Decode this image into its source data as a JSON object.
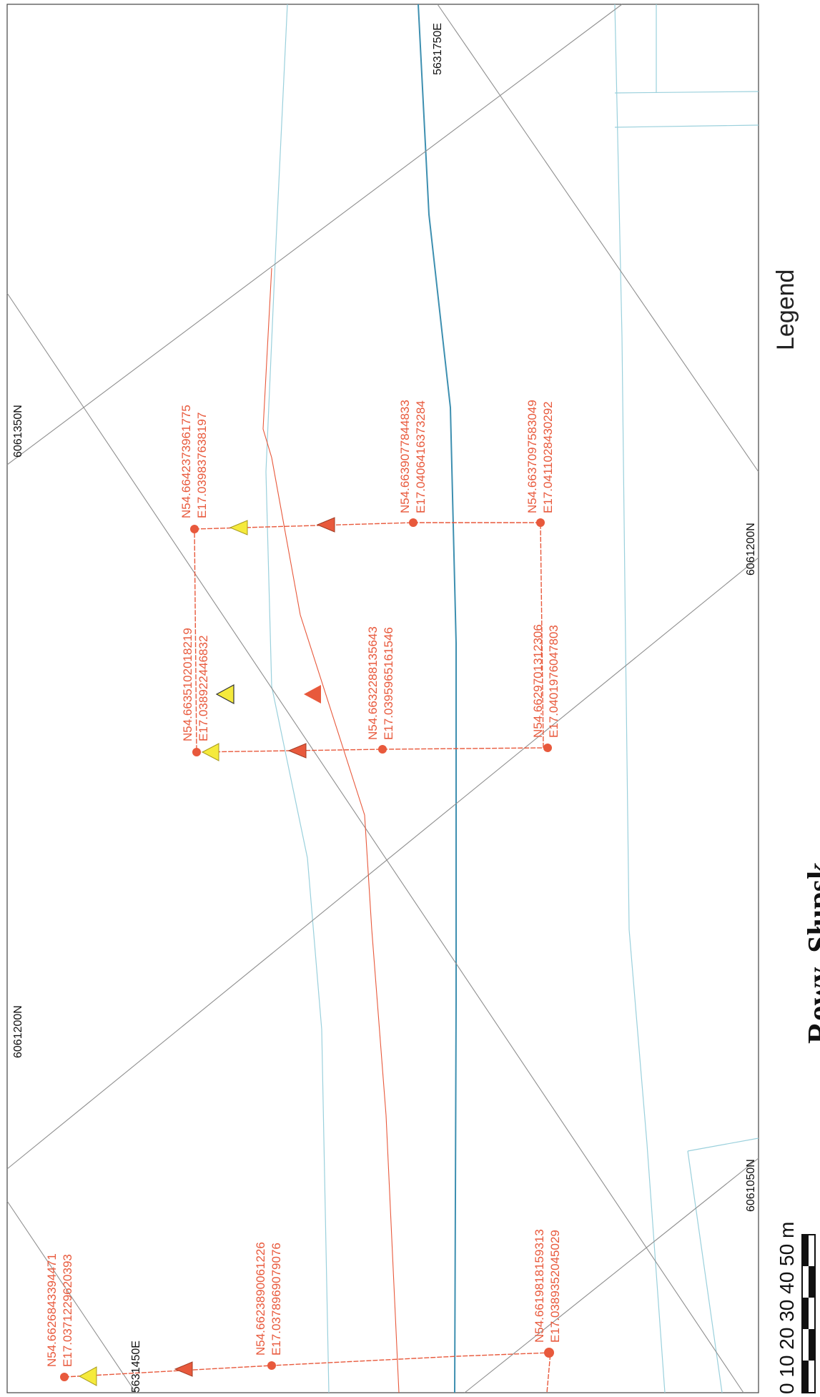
{
  "map": {
    "grid_labels": {
      "n_6061350": "6061350N",
      "n_6061200_top": "6061200N",
      "n_6061200_bottom": "6061200N",
      "n_6061050": "6061050N",
      "e_5631750": "5631750E",
      "e_5631450": "5631450E"
    },
    "points": [
      {
        "lat": "N54.6642373961775",
        "lon": "E17.039837638197"
      },
      {
        "lat": "N54.6639077844833",
        "lon": "E17.0406416373284"
      },
      {
        "lat": "N54.6637097583049",
        "lon": "E17.0411028430292"
      },
      {
        "lat": "N54.6635102018219",
        "lon": "E17.038922446832"
      },
      {
        "lat": "N54.6632288135643",
        "lon": "E17.0395965161546"
      },
      {
        "lat": "N54.6629701312306",
        "lon": "E17.0401976047803"
      },
      {
        "lat": "N54.6626843394471",
        "lon": "E17.0371229620393"
      },
      {
        "lat": "N54.6623890061226",
        "lon": "E17.0378969079076"
      },
      {
        "lat": "N54.6619818159313",
        "lon": "E17.0389352045029"
      }
    ],
    "marker_colors": {
      "yellow": "#f5ea3c",
      "red": "#e8593c"
    }
  },
  "legend": {
    "title": "Legend"
  },
  "place": {
    "title": "Rowy, Słupsk"
  },
  "scale": {
    "unit_label": "0 10 20 30 40 50 m"
  }
}
